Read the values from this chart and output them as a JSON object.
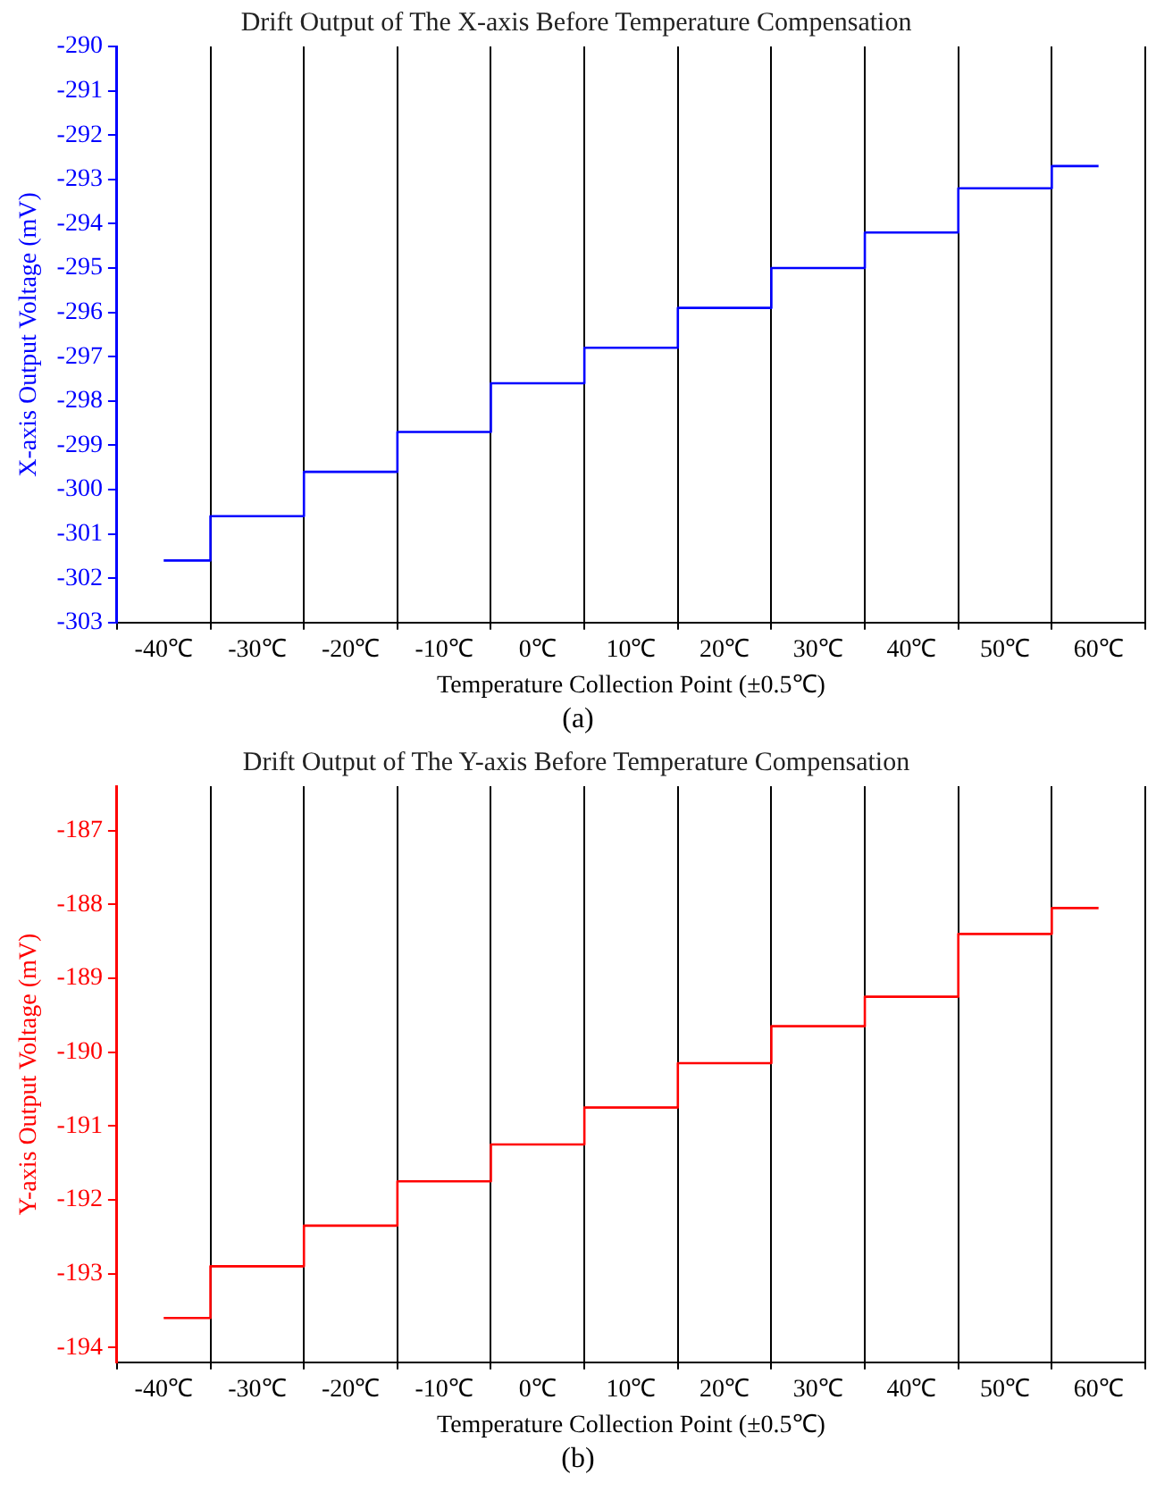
{
  "chart_data": [
    {
      "type": "step",
      "title": "Drift Output of The X-axis Before Temperature Compensation",
      "xlabel": "Temperature Collection Point (±0.5℃)",
      "ylabel": "X-axis Output Voltage (mV)",
      "categories": [
        "-40℃",
        "-30℃",
        "-20℃",
        "-10℃",
        "0℃",
        "10℃",
        "20℃",
        "30℃",
        "40℃",
        "50℃",
        "60℃"
      ],
      "series": [
        {
          "color": "#0000ff",
          "values": [
            -301.6,
            -300.6,
            -299.6,
            -298.7,
            -297.6,
            -296.8,
            -295.9,
            -295.0,
            -294.2,
            -293.2,
            -292.7
          ]
        }
      ],
      "ylim": [
        -303,
        -290
      ],
      "yticks": [
        -303,
        -302,
        -301,
        -300,
        -299,
        -298,
        -297,
        -296,
        -295,
        -294,
        -293,
        -292,
        -291,
        -290
      ],
      "grid": "x",
      "legend": false,
      "annotations": [
        "(a)"
      ]
    },
    {
      "type": "step",
      "title": "Drift Output of The Y-axis Before Temperature Compensation",
      "xlabel": "Temperature Collection Point (±0.5℃)",
      "ylabel": "Y-axis Output Voltage (mV)",
      "categories": [
        "-40℃",
        "-30℃",
        "-20℃",
        "-10℃",
        "0℃",
        "10℃",
        "20℃",
        "30℃",
        "40℃",
        "50℃",
        "60℃"
      ],
      "series": [
        {
          "color": "#ff0000",
          "values": [
            -193.6,
            -192.9,
            -192.35,
            -191.75,
            -191.25,
            -190.75,
            -190.15,
            -189.65,
            -189.25,
            -188.4,
            -188.05
          ]
        }
      ],
      "ylim": [
        -194.2,
        -186.4
      ],
      "yticks": [
        -194,
        -193,
        -192,
        -191,
        -190,
        -189,
        -188,
        -187
      ],
      "grid": "x",
      "legend": false,
      "annotations": [
        "(b)"
      ]
    }
  ]
}
